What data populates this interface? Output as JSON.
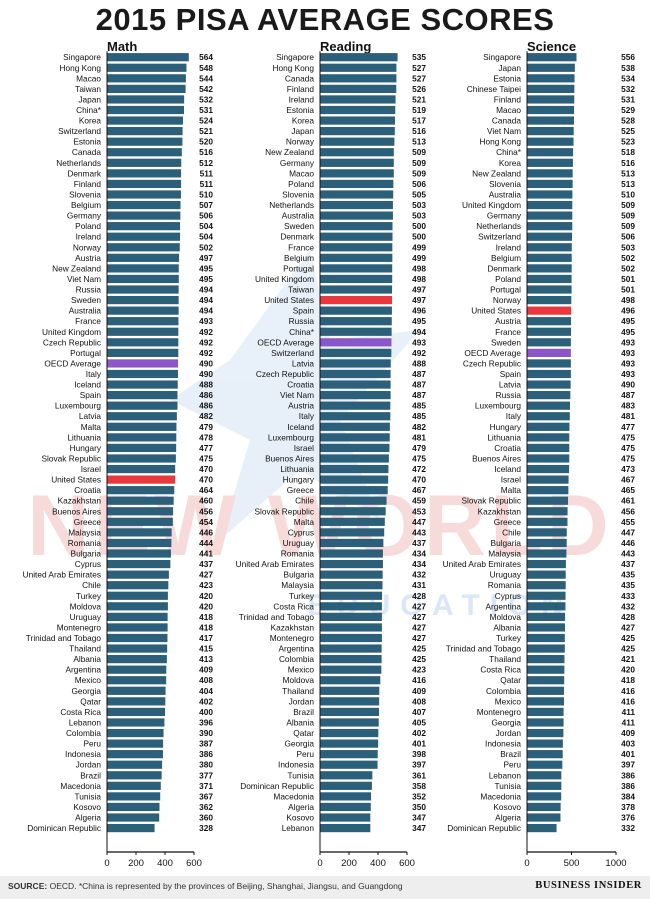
{
  "title": "2015 PISA AVERAGE SCORES",
  "footer": {
    "source_label": "SOURCE:",
    "source_text": "OECD. *China is represented by the provinces of Beijing, Shanghai, Jiangsu, and Guangdong",
    "brand": "BUSINESS INSIDER"
  },
  "watermark": {
    "text_line1": "NEW WORLD",
    "text_line2": "EDUCATION"
  },
  "colors": {
    "bar_default": "#2b5f7a",
    "bar_united_states": "#e8383d",
    "bar_oecd_average": "#8a56c8",
    "text": "#111111",
    "axis": "#111111"
  },
  "chart_data": [
    {
      "type": "bar",
      "orientation": "horizontal",
      "title": "Math",
      "xlim": [
        0,
        600
      ],
      "xticks": [
        "0",
        "200",
        "400",
        "600"
      ],
      "categories": [
        "Singapore",
        "Hong Kong",
        "Macao",
        "Taiwan",
        "Japan",
        "China*",
        "Korea",
        "Switzerland",
        "Estonia",
        "Canada",
        "Netherlands",
        "Denmark",
        "Finland",
        "Slovenia",
        "Belgium",
        "Germany",
        "Poland",
        "Ireland",
        "Norway",
        "Austria",
        "New Zealand",
        "Viet Nam",
        "Russia",
        "Sweden",
        "Australia",
        "France",
        "United Kingdom",
        "Czech Republic",
        "Portugal",
        "OECD Average",
        "Italy",
        "Iceland",
        "Spain",
        "Luxembourg",
        "Latvia",
        "Malta",
        "Lithuania",
        "Hungary",
        "Slovak Republic",
        "Israel",
        "United States",
        "Croatia",
        "Kazakhstan",
        "Buenos Aires",
        "Greece",
        "Malaysia",
        "Romania",
        "Bulgaria",
        "Cyprus",
        "United Arab Emirates",
        "Chile",
        "Turkey",
        "Moldova",
        "Uruguay",
        "Montenegro",
        "Trinidad and Tobago",
        "Thailand",
        "Albania",
        "Argentina",
        "Mexico",
        "Georgia",
        "Qatar",
        "Costa Rica",
        "Lebanon",
        "Colombia",
        "Peru",
        "Indonesia",
        "Jordan",
        "Brazil",
        "Macedonia",
        "Tunisia",
        "Kosovo",
        "Algeria",
        "Dominican Republic"
      ],
      "values": [
        564,
        548,
        544,
        542,
        532,
        531,
        524,
        521,
        520,
        516,
        512,
        511,
        511,
        510,
        507,
        506,
        504,
        504,
        502,
        497,
        495,
        495,
        494,
        494,
        494,
        493,
        492,
        492,
        492,
        490,
        490,
        488,
        486,
        486,
        482,
        479,
        478,
        477,
        475,
        470,
        470,
        464,
        460,
        456,
        454,
        446,
        444,
        441,
        437,
        427,
        423,
        420,
        420,
        418,
        418,
        417,
        415,
        413,
        409,
        408,
        404,
        402,
        400,
        396,
        390,
        387,
        386,
        380,
        377,
        371,
        367,
        362,
        360,
        328
      ]
    },
    {
      "type": "bar",
      "orientation": "horizontal",
      "title": "Reading",
      "xlim": [
        0,
        600
      ],
      "xticks": [
        "0",
        "200",
        "400",
        "600"
      ],
      "categories": [
        "Singapore",
        "Hong Kong",
        "Canada",
        "Finland",
        "Ireland",
        "Estonia",
        "Korea",
        "Japan",
        "Norway",
        "New Zealand",
        "Germany",
        "Macao",
        "Poland",
        "Slovenia",
        "Netherlands",
        "Australia",
        "Sweden",
        "Denmark",
        "France",
        "Belgium",
        "Portugal",
        "United Kingdom",
        "Taiwan",
        "United States",
        "Spain",
        "Russia",
        "China*",
        "OECD Average",
        "Switzerland",
        "Latvia",
        "Czech Republic",
        "Croatia",
        "Viet Nam",
        "Austria",
        "Italy",
        "Iceland",
        "Luxembourg",
        "Israel",
        "Buenos Aires",
        "Lithuania",
        "Hungary",
        "Greece",
        "Chile",
        "Slovak Republic",
        "Malta",
        "Cyprus",
        "Uruguay",
        "Romania",
        "United Arab Emirates",
        "Bulgaria",
        "Malaysia",
        "Turkey",
        "Costa Rica",
        "Trinidad and Tobago",
        "Kazakhstan",
        "Montenegro",
        "Argentina",
        "Colombia",
        "Mexico",
        "Moldova",
        "Thailand",
        "Jordan",
        "Brazil",
        "Albania",
        "Qatar",
        "Georgia",
        "Peru",
        "Indonesia",
        "Tunisia",
        "Dominican Republic",
        "Macedonia",
        "Algeria",
        "Kosovo",
        "Lebanon"
      ],
      "values": [
        535,
        527,
        527,
        526,
        521,
        519,
        517,
        516,
        513,
        509,
        509,
        509,
        506,
        505,
        503,
        503,
        500,
        500,
        499,
        499,
        498,
        498,
        497,
        497,
        496,
        495,
        494,
        493,
        492,
        488,
        487,
        487,
        487,
        485,
        485,
        482,
        481,
        479,
        475,
        472,
        470,
        467,
        459,
        453,
        447,
        443,
        437,
        434,
        434,
        432,
        431,
        428,
        427,
        427,
        427,
        427,
        425,
        425,
        423,
        416,
        409,
        408,
        407,
        405,
        402,
        401,
        398,
        397,
        361,
        358,
        352,
        350,
        347,
        347
      ]
    },
    {
      "type": "bar",
      "orientation": "horizontal",
      "title": "Science",
      "xlim": [
        0,
        1000
      ],
      "xticks": [
        "0",
        "500",
        "1000"
      ],
      "categories": [
        "Singapore",
        "Japan",
        "Estonia",
        "Chinese Taipei",
        "Finland",
        "Macao",
        "Canada",
        "Viet Nam",
        "Hong Kong",
        "China*",
        "Korea",
        "New Zealand",
        "Slovenia",
        "Australia",
        "United Kingdom",
        "Germany",
        "Netherlands",
        "Switzerland",
        "Ireland",
        "Belgium",
        "Denmark",
        "Poland",
        "Portugal",
        "Norway",
        "United States",
        "Austria",
        "France",
        "Sweden",
        "OECD Average",
        "Czech Republic",
        "Spain",
        "Latvia",
        "Russia",
        "Luxembourg",
        "Italy",
        "Hungary",
        "Lithuania",
        "Croatia",
        "Buenos Aires",
        "Iceland",
        "Israel",
        "Malta",
        "Slovak Republic",
        "Kazakhstan",
        "Greece",
        "Chile",
        "Bulgaria",
        "Malaysia",
        "United Arab Emirates",
        "Uruguay",
        "Romania",
        "Cyprus",
        "Argentina",
        "Moldova",
        "Albania",
        "Turkey",
        "Trinidad and Tobago",
        "Thailand",
        "Costa Rica",
        "Qatar",
        "Colombia",
        "Mexico",
        "Montenegro",
        "Georgia",
        "Jordan",
        "Indonesia",
        "Brazil",
        "Peru",
        "Lebanon",
        "Tunisia",
        "Macedonia",
        "Kosovo",
        "Algeria",
        "Dominican Republic"
      ],
      "values": [
        556,
        538,
        534,
        532,
        531,
        529,
        528,
        525,
        523,
        518,
        516,
        513,
        513,
        510,
        509,
        509,
        509,
        506,
        503,
        502,
        502,
        501,
        501,
        498,
        496,
        495,
        495,
        493,
        493,
        493,
        493,
        490,
        487,
        483,
        481,
        477,
        475,
        475,
        475,
        473,
        467,
        465,
        461,
        456,
        455,
        447,
        446,
        443,
        437,
        435,
        435,
        433,
        432,
        428,
        427,
        425,
        425,
        421,
        420,
        418,
        416,
        416,
        411,
        411,
        409,
        403,
        401,
        397,
        386,
        386,
        384,
        378,
        376,
        332
      ]
    }
  ]
}
